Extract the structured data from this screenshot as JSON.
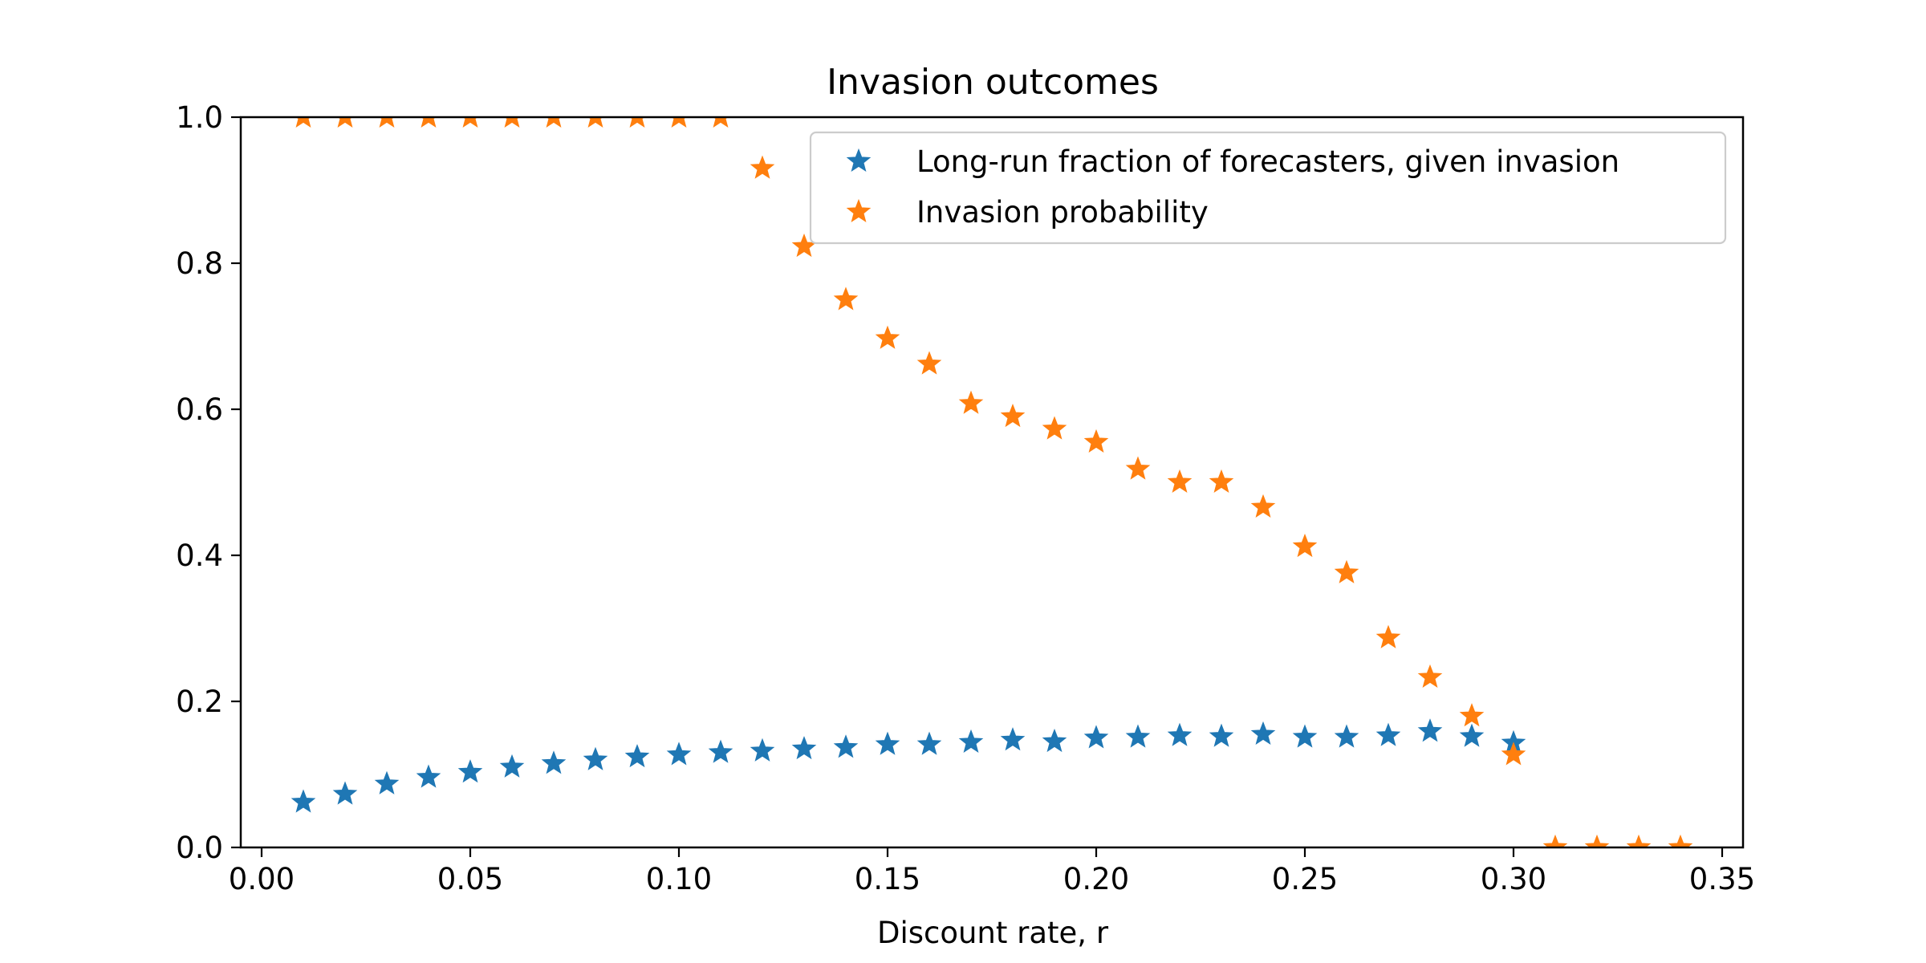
{
  "chart_data": {
    "type": "scatter",
    "title": "Invasion outcomes",
    "xlabel": "Discount rate, r",
    "ylabel": "",
    "xlim": [
      -0.005,
      0.355
    ],
    "ylim": [
      0.0,
      1.0
    ],
    "xticks": [
      "0.00",
      "0.05",
      "0.10",
      "0.15",
      "0.20",
      "0.25",
      "0.30",
      "0.35"
    ],
    "yticks": [
      "0.0",
      "0.2",
      "0.4",
      "0.6",
      "0.8",
      "1.0"
    ],
    "grid": false,
    "legend_position": "top-right",
    "marker": "star",
    "series": [
      {
        "name": "Long-run fraction of forecasters, given invasion",
        "color": "#1f77b4",
        "x": [
          0.01,
          0.02,
          0.03,
          0.04,
          0.05,
          0.06,
          0.07,
          0.08,
          0.09,
          0.1,
          0.11,
          0.12,
          0.13,
          0.14,
          0.15,
          0.16,
          0.17,
          0.18,
          0.19,
          0.2,
          0.21,
          0.22,
          0.23,
          0.24,
          0.25,
          0.26,
          0.27,
          0.28,
          0.29,
          0.3
        ],
        "y": [
          0.062,
          0.073,
          0.087,
          0.096,
          0.103,
          0.11,
          0.115,
          0.12,
          0.124,
          0.127,
          0.13,
          0.132,
          0.135,
          0.137,
          0.141,
          0.141,
          0.144,
          0.147,
          0.145,
          0.15,
          0.151,
          0.153,
          0.152,
          0.155,
          0.151,
          0.151,
          0.153,
          0.159,
          0.152,
          0.143
        ]
      },
      {
        "name": "Invasion probability",
        "color": "#ff7f0e",
        "x": [
          0.01,
          0.02,
          0.03,
          0.04,
          0.05,
          0.06,
          0.07,
          0.08,
          0.09,
          0.1,
          0.11,
          0.12,
          0.13,
          0.14,
          0.15,
          0.16,
          0.17,
          0.18,
          0.19,
          0.2,
          0.21,
          0.22,
          0.23,
          0.24,
          0.25,
          0.26,
          0.27,
          0.28,
          0.29,
          0.3,
          0.31,
          0.32,
          0.33,
          0.34
        ],
        "y": [
          1.0,
          1.0,
          1.0,
          1.0,
          1.0,
          1.0,
          1.0,
          1.0,
          1.0,
          1.0,
          1.0,
          0.93,
          0.823,
          0.75,
          0.697,
          0.662,
          0.608,
          0.59,
          0.573,
          0.555,
          0.518,
          0.5,
          0.5,
          0.466,
          0.412,
          0.376,
          0.287,
          0.233,
          0.18,
          0.127,
          0.0,
          0.0,
          0.0,
          0.0
        ]
      }
    ]
  }
}
